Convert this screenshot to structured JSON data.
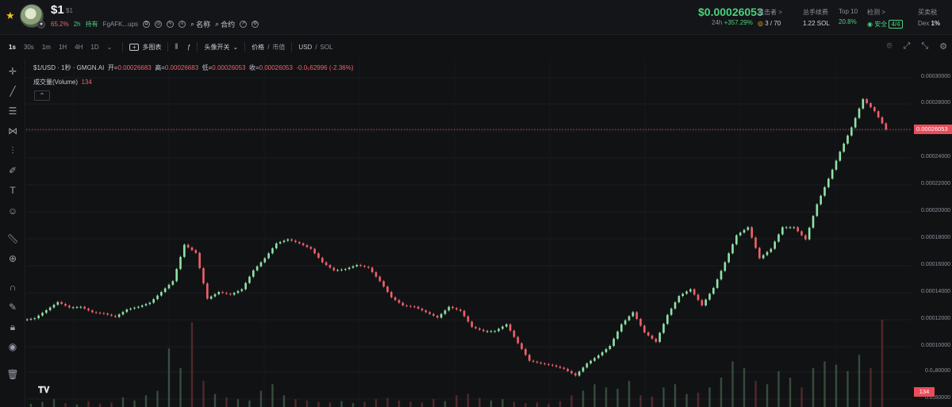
{
  "header": {
    "symbol": "$1",
    "symbol_sub": "$1",
    "percent": "65.2%",
    "age": "2h",
    "holders_label": "持有",
    "holder_addr": "FgAFK...ups",
    "link_name": "名称",
    "link_contract": "合约",
    "price": "$0.00026053",
    "period": "24h",
    "change": "+357.29%",
    "stats": {
      "snipers_label": "狙击者 >",
      "snipers_value": "3 / 70",
      "fees_label": "总手续费",
      "fees_value": "1.22 SOL",
      "top10_label": "Top 10",
      "top10_value": "20.8%",
      "audit_label": "检测 >",
      "audit_safe": "安全",
      "audit_value": "4/4",
      "tax_label": "买卖税",
      "tax_dex": "Dex",
      "tax_value": "1%"
    }
  },
  "toolbar": {
    "timeframes": [
      "1s",
      "30s",
      "1m",
      "1H",
      "4H",
      "1D"
    ],
    "multi_chart": "多图表",
    "avatar_toggle": "头像开关",
    "price_label": "价格",
    "mcap_label": "市值",
    "currency_usd": "USD",
    "currency_sol": "SOL"
  },
  "legend": {
    "title": "$1/USD · 1秒 · GMGN.AI",
    "open_label": "开=",
    "open": "0.00026683",
    "high_label": "高=",
    "high": "0.00026683",
    "low_label": "低=",
    "low": "0.00026053",
    "close_label": "收=",
    "close": "0.00026053",
    "change": "-0.0₅62996 (-2.36%)",
    "volume_label": "成交量(Volume)",
    "volume_value": "134"
  },
  "axis": {
    "ticks": [
      "0.00030000",
      "0.00028000",
      "0.00024000",
      "0.00022000",
      "0.00020000",
      "0.00018000",
      "0.00016000",
      "0.00014000",
      "0.00012000",
      "0.00010000",
      "0.0₄80000",
      "0.0₄60000"
    ],
    "last_price": "0.00026053",
    "volume_tag": "134"
  },
  "colors": {
    "up": "#8fe3a7",
    "down": "#f0616d",
    "bg": "#111214",
    "grid": "#1c1e22"
  },
  "chart_data": {
    "type": "candlestick",
    "close": [
      0.0001205,
      0.0001265,
      0.0001325,
      0.0001285,
      0.000129,
      0.000125,
      0.000124,
      0.0001215,
      0.000127,
      0.000129,
      0.000132,
      0.00014,
      0.000148,
      0.000175,
      0.000169,
      0.000135,
      0.00014,
      0.000138,
      0.000142,
      0.000156,
      0.000165,
      0.000176,
      0.000179,
      0.000176,
      0.000172,
      0.000162,
      0.000156,
      0.000157,
      0.00016,
      0.000158,
      0.000148,
      0.000136,
      0.00013,
      0.000129,
      0.000125,
      0.000121,
      0.000129,
      0.000126,
      0.000114,
      0.000111,
      0.000111,
      0.000116,
      0.000102,
      8.9e-05,
      8.7e-05,
      8.55e-05,
      8.3e-05,
      7.8e-05,
      8.7e-05,
      9.3e-05,
      0.0001,
      0.000116,
      0.000125,
      0.00011,
      0.000103,
      0.000123,
      0.000137,
      0.000142,
      0.00013,
      0.000143,
      0.000162,
      0.000182,
      0.000188,
      0.000165,
      0.000172,
      0.000188,
      0.000188,
      0.000179,
      0.000205,
      0.000224,
      0.000244,
      0.000262,
      0.000283,
      0.000274,
      0.0002605
    ],
    "volume": [
      5,
      8,
      12,
      6,
      4,
      9,
      5,
      7,
      15,
      10,
      18,
      25,
      90,
      60,
      130,
      40,
      20,
      15,
      12,
      10,
      25,
      35,
      18,
      12,
      10,
      8,
      7,
      9,
      6,
      8,
      12,
      14,
      10,
      8,
      7,
      12,
      9,
      18,
      20,
      14,
      10,
      12,
      8,
      6,
      7,
      5,
      9,
      18,
      25,
      35,
      30,
      28,
      40,
      18,
      16,
      30,
      35,
      20,
      22,
      30,
      45,
      70,
      60,
      40,
      35,
      55,
      45,
      30,
      60,
      70,
      65,
      55,
      80,
      60,
      134
    ]
  }
}
